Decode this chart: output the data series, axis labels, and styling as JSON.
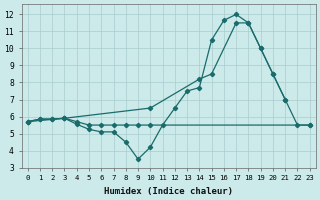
{
  "xlabel": "Humidex (Indice chaleur)",
  "background_color": "#cceaea",
  "grid_color": "#aacccc",
  "line_color": "#1a6b6b",
  "xlim": [
    -0.5,
    23.5
  ],
  "ylim": [
    3,
    12.6
  ],
  "xticks": [
    0,
    1,
    2,
    3,
    4,
    5,
    6,
    7,
    8,
    9,
    10,
    11,
    12,
    13,
    14,
    15,
    16,
    17,
    18,
    19,
    20,
    21,
    22,
    23
  ],
  "yticks": [
    3,
    4,
    5,
    6,
    7,
    8,
    9,
    10,
    11,
    12
  ],
  "line1_x": [
    0,
    1,
    2,
    3,
    4,
    5,
    6,
    7,
    8,
    9,
    10,
    11,
    12,
    13,
    14,
    15,
    16,
    17,
    18,
    19,
    20,
    21
  ],
  "line1_y": [
    5.7,
    5.85,
    5.85,
    5.9,
    5.55,
    5.25,
    5.1,
    5.1,
    4.5,
    3.5,
    4.2,
    5.5,
    6.5,
    7.5,
    7.7,
    10.5,
    11.65,
    12.0,
    11.5,
    10.0,
    8.5,
    7.0
  ],
  "line2_x": [
    0,
    3,
    10,
    14,
    15,
    17,
    18,
    19,
    20,
    21,
    22,
    23
  ],
  "line2_y": [
    5.7,
    5.9,
    6.5,
    8.2,
    8.5,
    11.5,
    11.5,
    10.0,
    8.5,
    7.0,
    5.5,
    5.5
  ],
  "line3_x": [
    0,
    1,
    2,
    3,
    4,
    5,
    6,
    7,
    8,
    9,
    10,
    23
  ],
  "line3_y": [
    5.7,
    5.85,
    5.85,
    5.9,
    5.7,
    5.5,
    5.5,
    5.5,
    5.5,
    5.5,
    5.5,
    5.5
  ]
}
